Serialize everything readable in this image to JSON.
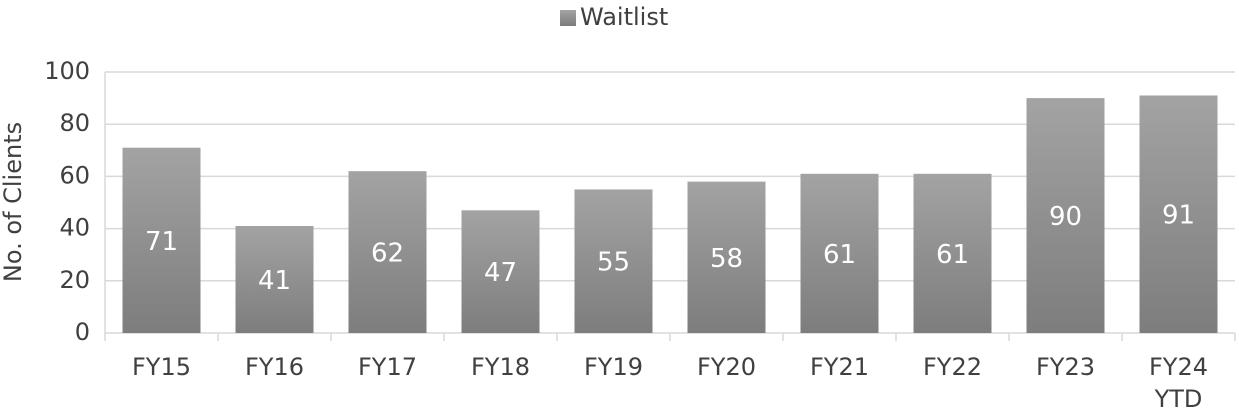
{
  "chart_data": {
    "type": "bar",
    "y_label": "No. of Clients",
    "categories": [
      "FY15",
      "FY16",
      "FY17",
      "FY18",
      "FY19",
      "FY20",
      "FY21",
      "FY22",
      "FY23",
      "FY24 YTD"
    ],
    "series": [
      {
        "name": "Waitlist",
        "color": "#a3a3a3",
        "values": [
          71,
          41,
          62,
          47,
          55,
          58,
          61,
          61,
          90,
          91
        ]
      }
    ],
    "ylim": [
      0,
      100
    ],
    "yticks": [
      0,
      20,
      40,
      60,
      80,
      100
    ],
    "grid": true,
    "legend": "top"
  }
}
